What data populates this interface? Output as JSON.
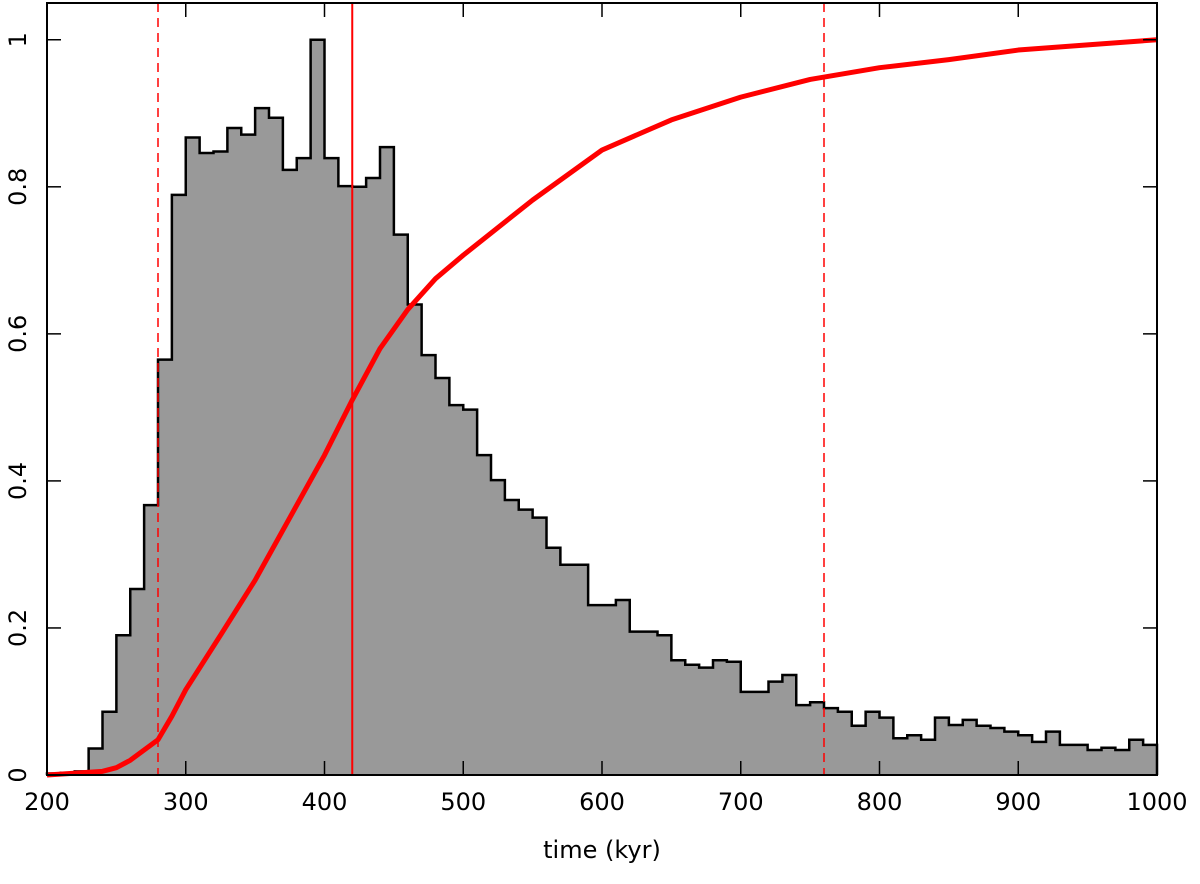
{
  "chart_data": {
    "type": "histogram",
    "xlabel": "time (kyr)",
    "bins": [
      200,
      210,
      220,
      230,
      240,
      250,
      260,
      270,
      280,
      290,
      300,
      310,
      320,
      330,
      340,
      350,
      360,
      370,
      380,
      390,
      400,
      410,
      420,
      430,
      440,
      450,
      460,
      470,
      480,
      490,
      500,
      510,
      520,
      530,
      540,
      550,
      560,
      570,
      580,
      590,
      600,
      610,
      620,
      630,
      640,
      650,
      660,
      670,
      680,
      690,
      700,
      710,
      720,
      730,
      740,
      750,
      760,
      770,
      780,
      790,
      800,
      810,
      820,
      830,
      840,
      850,
      860,
      870,
      880,
      890,
      900,
      910,
      920,
      930,
      940,
      950,
      960,
      970,
      980,
      990,
      1000
    ],
    "values": [
      0.002,
      0.003,
      0.005,
      0.036,
      0.086,
      0.19,
      0.253,
      0.367,
      0.565,
      0.789,
      0.867,
      0.846,
      0.848,
      0.88,
      0.871,
      0.907,
      0.894,
      0.823,
      0.839,
      1.0,
      0.839,
      0.801,
      0.8,
      0.812,
      0.854,
      0.735,
      0.64,
      0.571,
      0.54,
      0.503,
      0.497,
      0.435,
      0.401,
      0.374,
      0.361,
      0.35,
      0.309,
      0.286,
      0.286,
      0.231,
      0.231,
      0.238,
      0.195,
      0.195,
      0.19,
      0.156,
      0.15,
      0.146,
      0.156,
      0.154,
      0.113,
      0.113,
      0.127,
      0.136,
      0.095,
      0.099,
      0.091,
      0.086,
      0.067,
      0.086,
      0.078,
      0.05,
      0.054,
      0.048,
      0.078,
      0.068,
      0.075,
      0.067,
      0.064,
      0.059,
      0.054,
      0.045,
      0.059,
      0.041,
      0.041,
      0.034,
      0.037,
      0.034,
      0.048,
      0.041
    ],
    "color": "#999999",
    "edgecolor": "#000000",
    "cumulative": {
      "color": "#ff0000",
      "x": [
        200,
        240,
        250,
        260,
        270,
        280,
        290,
        300,
        325,
        350,
        375,
        400,
        420,
        440,
        460,
        480,
        500,
        550,
        600,
        650,
        700,
        750,
        800,
        850,
        900,
        950,
        1000
      ],
      "values": [
        0,
        0.005,
        0.01,
        0.02,
        0.034,
        0.048,
        0.08,
        0.116,
        0.19,
        0.265,
        0.35,
        0.435,
        0.51,
        0.58,
        0.633,
        0.675,
        0.707,
        0.782,
        0.85,
        0.891,
        0.922,
        0.946,
        0.962,
        0.973,
        0.986,
        0.993,
        1.0
      ]
    },
    "vlines": [
      {
        "x": 280,
        "style": "dashed",
        "color": "#ff0000"
      },
      {
        "x": 420,
        "style": "solid",
        "color": "#ff0000"
      },
      {
        "x": 760,
        "style": "dashed",
        "color": "#ff0000"
      }
    ],
    "xlim": [
      200,
      1000
    ],
    "ylim": [
      0,
      1.05
    ],
    "xticks": [
      200,
      300,
      400,
      500,
      600,
      700,
      800,
      900,
      1000
    ],
    "yticks": [
      0,
      0.2,
      0.4,
      0.6,
      0.8,
      1
    ]
  }
}
